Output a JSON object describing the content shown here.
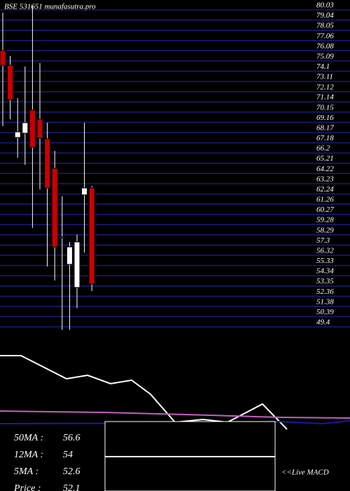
{
  "chart_data": {
    "type": "candlestick",
    "title": "BSE 531651 munafasutra.pro",
    "ylim": [
      49.4,
      80.03
    ],
    "yticks": [
      80.03,
      79.04,
      78.05,
      77.06,
      76.08,
      75.09,
      74.1,
      73.11,
      72.12,
      71.14,
      70.15,
      69.16,
      68.17,
      67.18,
      66.2,
      65.21,
      64.22,
      63.23,
      62.24,
      61.26,
      60.27,
      59.28,
      58.29,
      57.3,
      56.32,
      55.33,
      54.34,
      53.35,
      52.36,
      51.38,
      50.39,
      49.4
    ],
    "grid": true,
    "up_color": "#ffffff",
    "down_color": "#cc0000",
    "open": [
      75.69,
      74.27,
      67.29,
      67.7,
      69.94,
      69.05,
      67.16,
      64.31,
      57.7,
      55.03,
      52.8,
      61.74,
      62.41
    ],
    "high": [
      79.35,
      75.15,
      71.09,
      74.14,
      80.03,
      74.48,
      68.72,
      66.0,
      61.6,
      57.2,
      57.9,
      68.72,
      62.6
    ],
    "low": [
      68.38,
      69.05,
      65.33,
      64.65,
      58.55,
      62.28,
      54.83,
      53.47,
      48.7,
      48.7,
      50.8,
      56.18,
      52.45
    ],
    "close": [
      74.27,
      70.95,
      67.83,
      68.72,
      66.35,
      67.23,
      62.41,
      56.72,
      57.6,
      56.72,
      57.2,
      62.41,
      53.13
    ],
    "indicators": [
      {
        "label": "50MA :",
        "value": 56.6
      },
      {
        "label": "12MA :",
        "value": 54
      },
      {
        "label": "5MA :",
        "value": 52.6
      },
      {
        "label": "Price  :",
        "value": 52.1
      }
    ],
    "note": "<<Live MACD"
  }
}
